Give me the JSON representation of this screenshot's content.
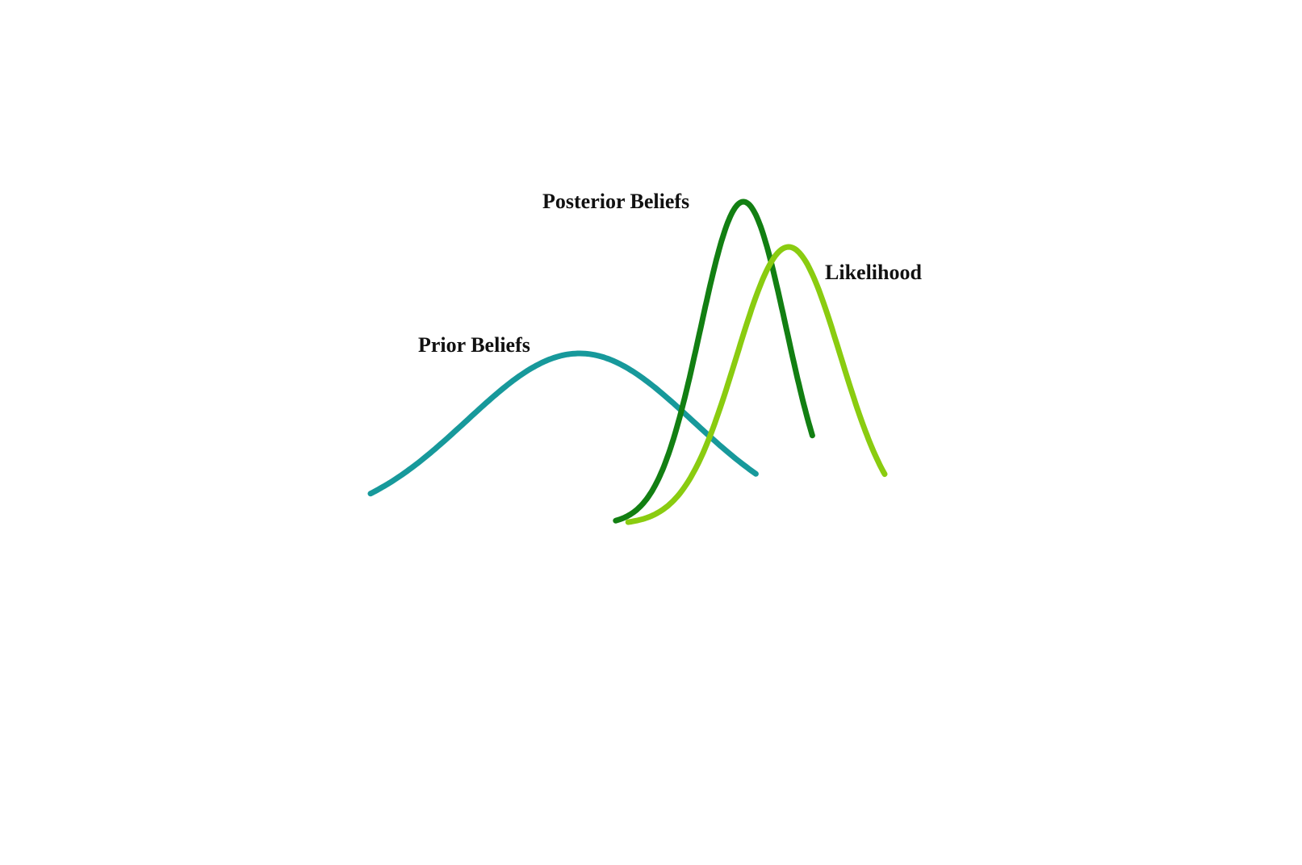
{
  "figure": {
    "curves": [
      {
        "key": "prior",
        "label": "Prior Beliefs",
        "color": "#17999b",
        "mean": 0.0,
        "sd": 1.0,
        "peak": 0.53
      },
      {
        "key": "posterior",
        "label": "Posterior Beliefs",
        "color": "#127f12",
        "mean": 1.45,
        "sd": 0.38,
        "peak": 1.0
      },
      {
        "key": "likelihood",
        "label": "Likelihood",
        "color": "#8acc10",
        "mean": 1.85,
        "sd": 0.46,
        "peak": 0.86
      }
    ]
  }
}
